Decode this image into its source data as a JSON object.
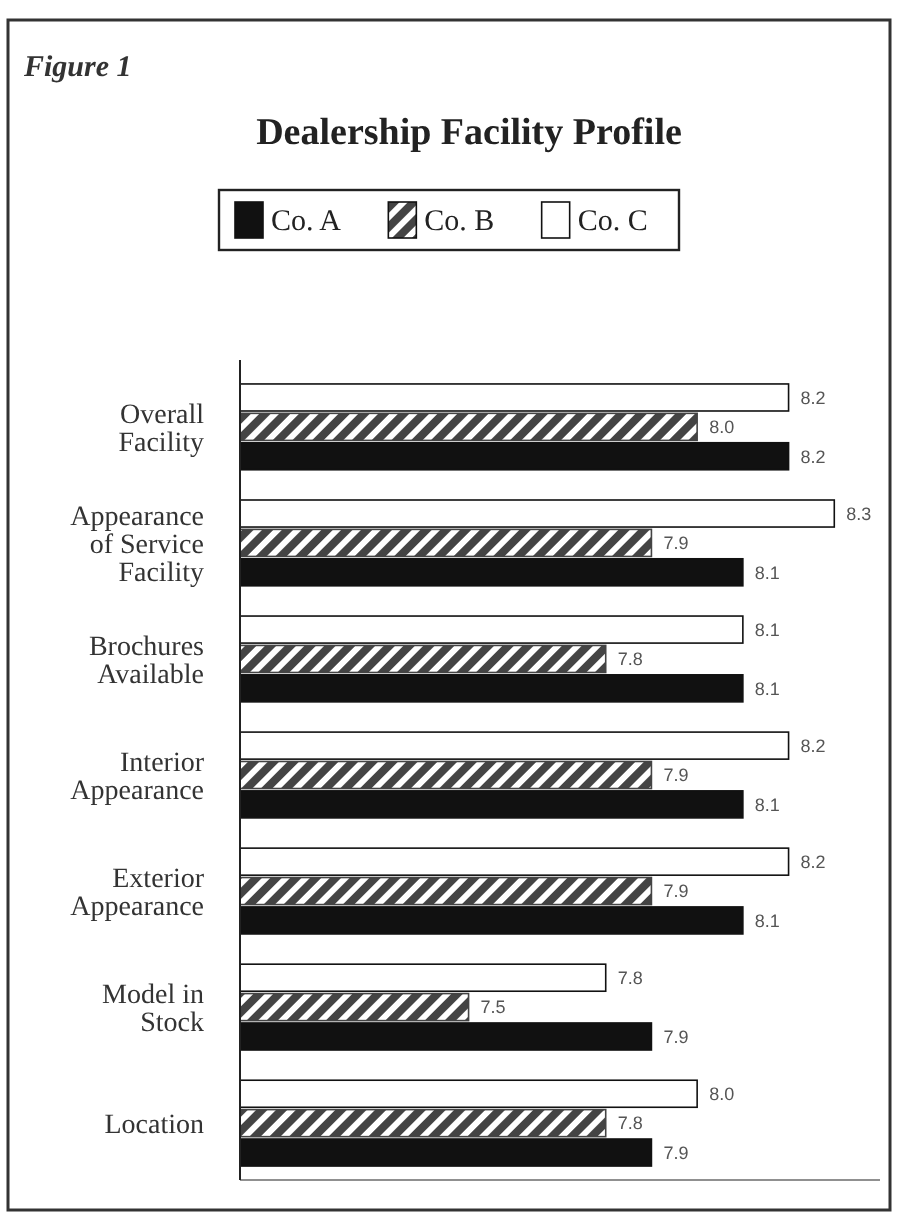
{
  "chart_data": {
    "type": "bar",
    "orientation": "horizontal",
    "title": "Dealership Facility Profile",
    "annotations": [
      "Figure 1"
    ],
    "categories": [
      "Overall Facility",
      "Appearance of Service Facility",
      "Brochures Available",
      "Interior Appearance",
      "Exterior Appearance",
      "Model in Stock",
      "Location"
    ],
    "series": [
      {
        "name": "Co. C",
        "color": "#ffffff",
        "values": [
          8.2,
          8.3,
          8.1,
          8.2,
          8.2,
          7.8,
          8.0
        ],
        "value_labels": [
          "8.2",
          "8.3",
          "8.1",
          "8.2",
          "8.2",
          "7.8",
          "8.0"
        ]
      },
      {
        "name": "Co. B",
        "color": "#444444",
        "values": [
          8.0,
          7.9,
          7.8,
          7.9,
          7.9,
          7.5,
          7.8
        ],
        "value_labels": [
          "8.0",
          "7.9",
          "7.8",
          "7.9",
          "7.9",
          "7.5",
          "7.8"
        ]
      },
      {
        "name": "Co. A",
        "color": "#111111",
        "values": [
          8.2,
          8.1,
          8.1,
          8.1,
          8.1,
          7.9,
          7.9
        ],
        "value_labels": [
          "8.2",
          "8.1",
          "8.1",
          "8.1",
          "8.1",
          "7.9",
          "7.9"
        ]
      }
    ],
    "xlim": [
      7,
      8.4
    ],
    "tick_labels": false,
    "legend": "top",
    "grid": false
  }
}
